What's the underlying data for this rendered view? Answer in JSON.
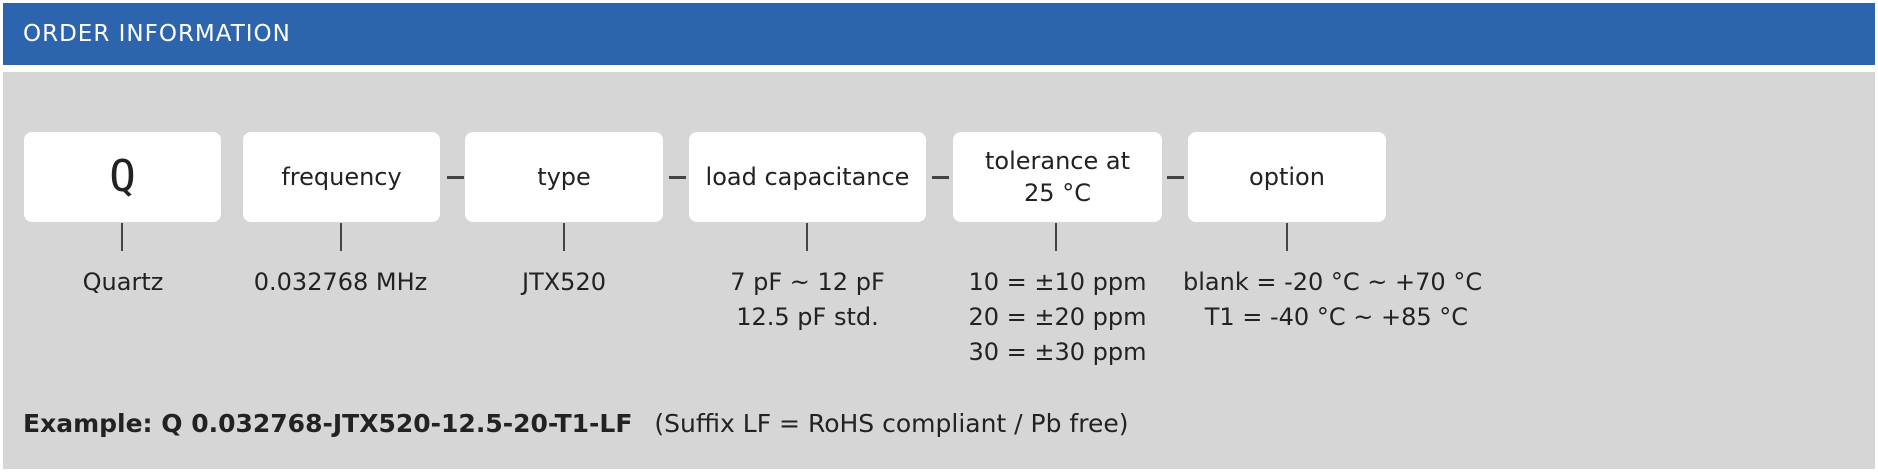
{
  "header": {
    "title": "ORDER INFORMATION"
  },
  "code": {
    "boxes": [
      {
        "label": "Q"
      },
      {
        "label": "frequency"
      },
      {
        "label": "type"
      },
      {
        "label": "load capacitance"
      },
      {
        "label_line1": "tolerance at",
        "label_line2": "25 °C"
      },
      {
        "label": "option"
      }
    ],
    "separator": "-"
  },
  "descriptions": {
    "quartz": [
      "Quartz"
    ],
    "frequency": [
      "0.032768 MHz"
    ],
    "type": [
      "JTX520"
    ],
    "load_capacitance": [
      "7 pF ~ 12 pF",
      "12.5 pF std."
    ],
    "tolerance": [
      "10 = ±10 ppm",
      "20 = ±20 ppm",
      "30 = ±30 ppm"
    ],
    "option": [
      "blank = -20 °C ~ +70 °C",
      "T1 = -40 °C ~ +85 °C"
    ]
  },
  "example": {
    "code": "Example: Q 0.032768-JTX520-12.5-20-T1-LF",
    "note": "(Suffix LF = RoHS compliant / Pb free)"
  },
  "colors": {
    "header": "#2c64ae",
    "panel": "#d6d6d6",
    "box": "#ffffff"
  }
}
